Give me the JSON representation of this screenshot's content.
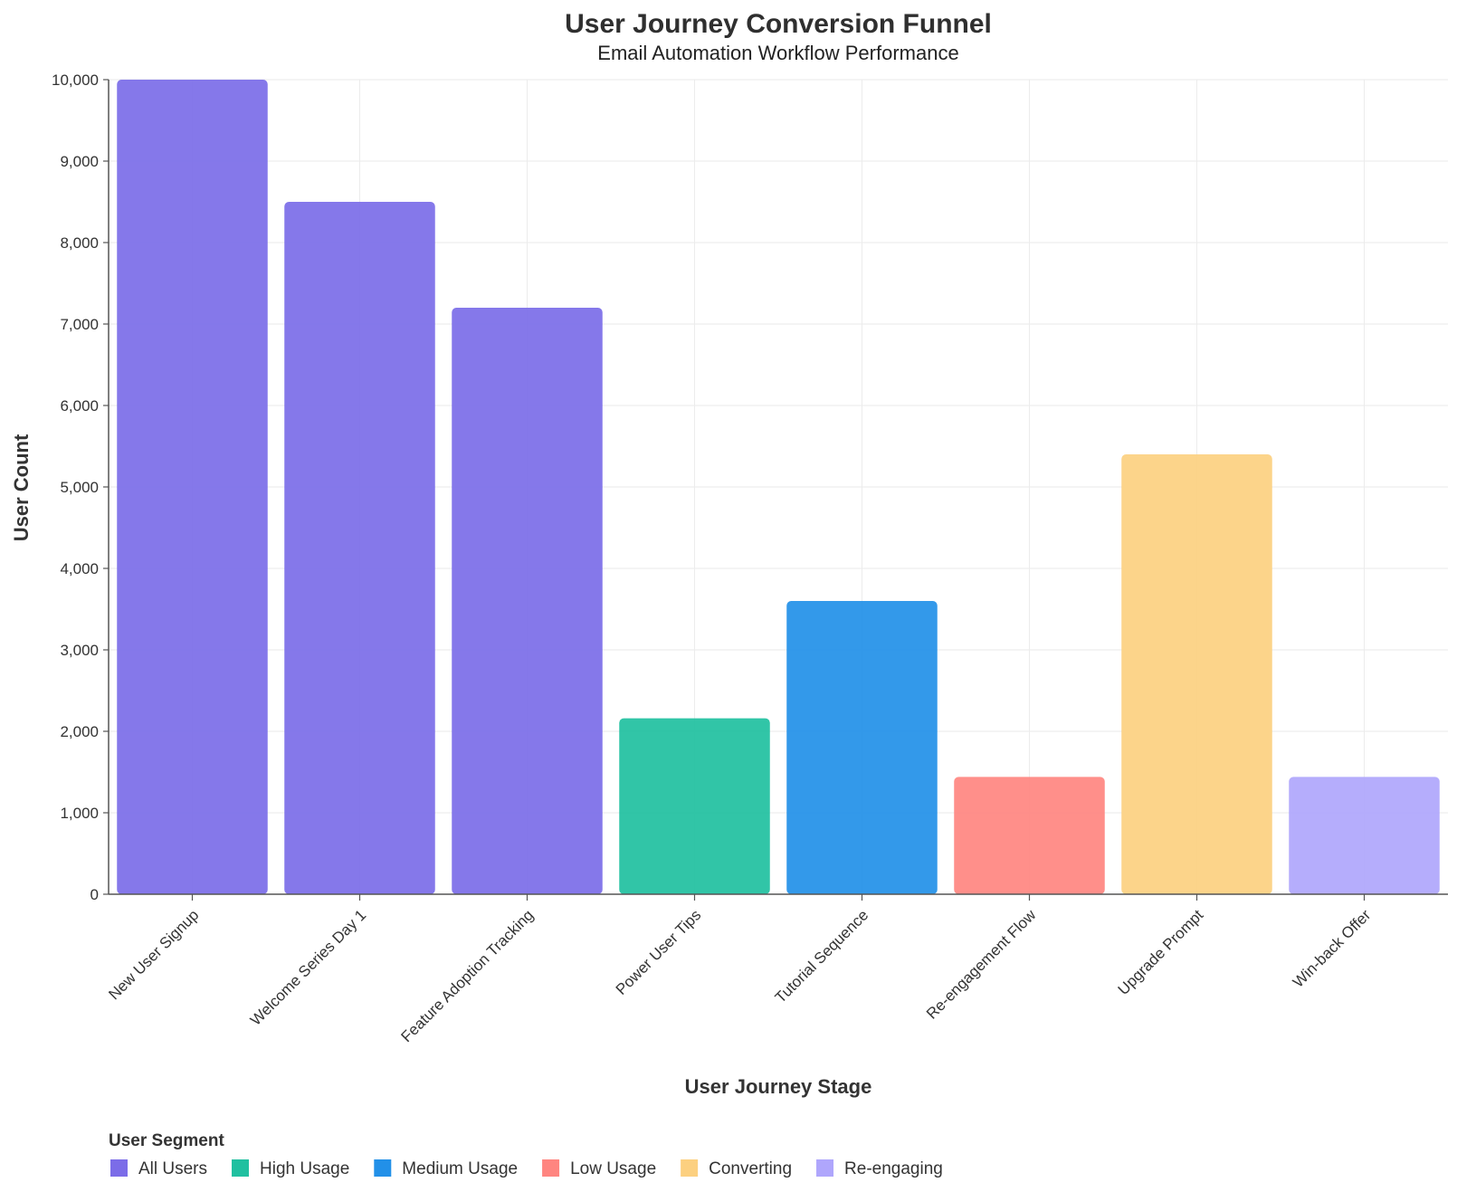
{
  "chart_data": {
    "type": "bar",
    "title": "User Journey Conversion Funnel",
    "subtitle": "Email Automation Workflow Performance",
    "xlabel": "User Journey Stage",
    "ylabel": "User Count",
    "ylim": [
      0,
      10000
    ],
    "yticks": [
      0,
      1000,
      2000,
      3000,
      4000,
      5000,
      6000,
      7000,
      8000,
      9000,
      10000
    ],
    "ytick_labels": [
      "0",
      "1,000",
      "2,000",
      "3,000",
      "4,000",
      "5,000",
      "6,000",
      "7,000",
      "8,000",
      "9,000",
      "10,000"
    ],
    "grid": true,
    "categories": [
      "New User Signup",
      "Welcome Series Day 1",
      "Feature Adoption Tracking",
      "Power User Tips",
      "Tutorial Sequence",
      "Re-engagement Flow",
      "Upgrade Prompt",
      "Win-back Offer"
    ],
    "values": [
      10000,
      8500,
      7200,
      2160,
      3600,
      1440,
      5400,
      1440
    ],
    "bar_segments": [
      "All Users",
      "All Users",
      "All Users",
      "High Usage",
      "Medium Usage",
      "Low Usage",
      "Converting",
      "Re-engaging"
    ],
    "legend": {
      "title": "User Segment",
      "placement": "bottom-left",
      "entries": [
        {
          "label": "All Users",
          "color": "#7b6ce8"
        },
        {
          "label": "High Usage",
          "color": "#20c0a0"
        },
        {
          "label": "Medium Usage",
          "color": "#2290e8"
        },
        {
          "label": "Low Usage",
          "color": "#ff8580"
        },
        {
          "label": "Converting",
          "color": "#fcd080"
        },
        {
          "label": "Re-engaging",
          "color": "#afa6fc"
        }
      ]
    }
  }
}
